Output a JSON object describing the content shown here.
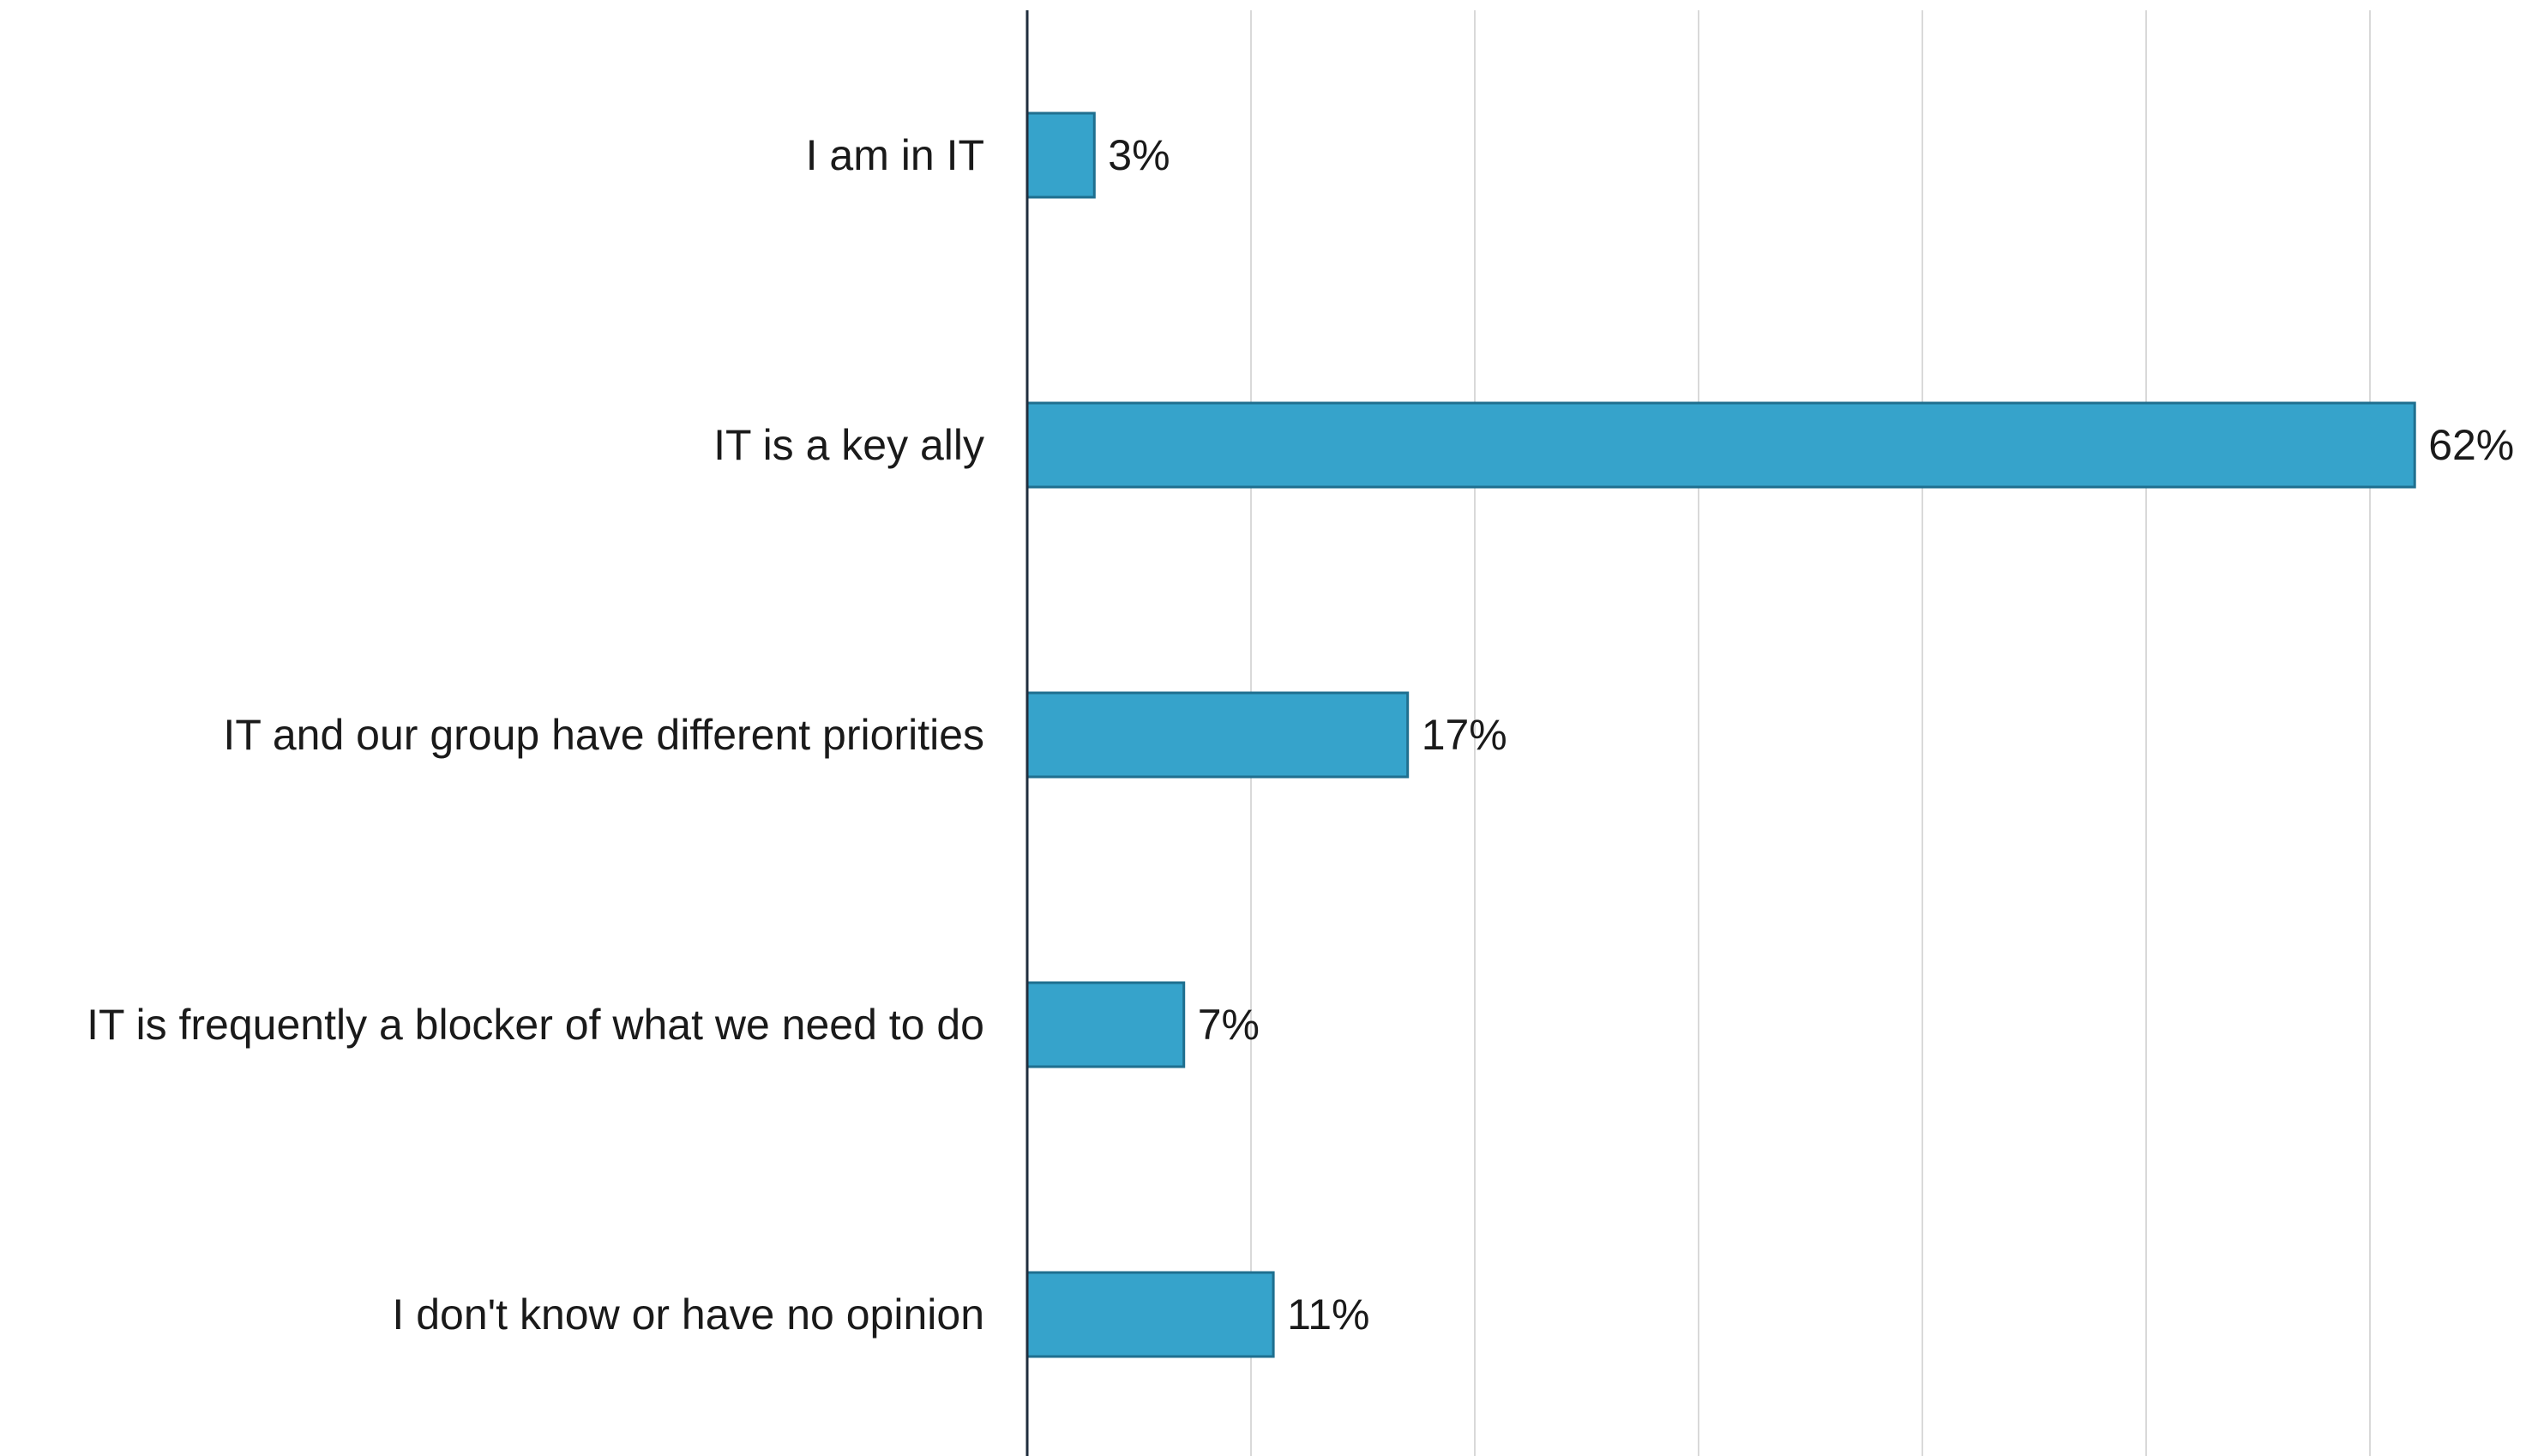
{
  "chart_data": {
    "type": "bar",
    "orientation": "horizontal",
    "categories": [
      "I am in IT",
      "IT is a key ally",
      "IT and our group have different priorities",
      "IT is frequently a blocker of what we need to do",
      "I don't know or have no opinion"
    ],
    "values": [
      3,
      62,
      17,
      7,
      11
    ],
    "data_labels": [
      "3%",
      "62%",
      "17%",
      "7%",
      "11%"
    ],
    "unit": "%",
    "xlim": [
      0,
      66
    ],
    "grid": true,
    "gridline_step": 10,
    "bar_color": "#36a3cb",
    "bar_edge_color": "#1f6f8f",
    "axis_color": "#1f2d3d",
    "grid_color": "#d9d9d9"
  }
}
